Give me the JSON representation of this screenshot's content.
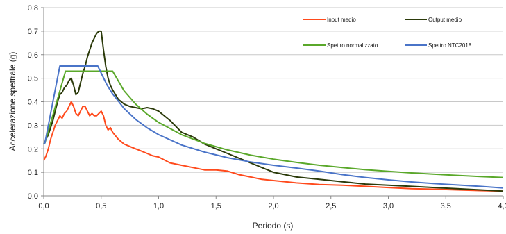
{
  "chart_data": {
    "type": "line",
    "xlabel": "Periodo (s)",
    "ylabel": "Accelerazione spettrale (g)",
    "xlim": [
      0,
      4
    ],
    "ylim": [
      0,
      0.8
    ],
    "x_ticks": [
      "0,0",
      "0,5",
      "1,0",
      "1,5",
      "2,0",
      "2,5",
      "3,0",
      "3,5",
      "4,0"
    ],
    "y_ticks": [
      "0,0",
      "0,1",
      "0,2",
      "0,3",
      "0,4",
      "0,5",
      "0,6",
      "0,7",
      "0,8"
    ],
    "grid": "horizontal",
    "legend_position": "top-right",
    "series": [
      {
        "name": "Input medio",
        "color": "#ff4a1c",
        "x": [
          0.0,
          0.02,
          0.04,
          0.06,
          0.08,
          0.1,
          0.12,
          0.14,
          0.16,
          0.18,
          0.2,
          0.22,
          0.24,
          0.26,
          0.28,
          0.3,
          0.32,
          0.34,
          0.36,
          0.38,
          0.4,
          0.42,
          0.44,
          0.46,
          0.48,
          0.5,
          0.52,
          0.54,
          0.56,
          0.58,
          0.6,
          0.65,
          0.7,
          0.75,
          0.8,
          0.85,
          0.9,
          0.95,
          1.0,
          1.1,
          1.2,
          1.3,
          1.4,
          1.5,
          1.6,
          1.7,
          1.8,
          1.9,
          2.0,
          2.2,
          2.4,
          2.6,
          2.8,
          3.0,
          3.2,
          3.4,
          3.6,
          3.8,
          4.0
        ],
        "y": [
          0.15,
          0.17,
          0.2,
          0.24,
          0.27,
          0.3,
          0.32,
          0.34,
          0.33,
          0.35,
          0.36,
          0.38,
          0.4,
          0.38,
          0.35,
          0.34,
          0.36,
          0.38,
          0.38,
          0.36,
          0.34,
          0.35,
          0.34,
          0.34,
          0.35,
          0.36,
          0.34,
          0.3,
          0.28,
          0.29,
          0.27,
          0.24,
          0.22,
          0.21,
          0.2,
          0.19,
          0.18,
          0.17,
          0.165,
          0.14,
          0.13,
          0.12,
          0.11,
          0.11,
          0.105,
          0.09,
          0.08,
          0.07,
          0.065,
          0.055,
          0.048,
          0.045,
          0.04,
          0.035,
          0.03,
          0.028,
          0.025,
          0.022,
          0.02
        ]
      },
      {
        "name": "Output medio",
        "color": "#2b3a0a",
        "x": [
          0.0,
          0.02,
          0.04,
          0.06,
          0.08,
          0.1,
          0.12,
          0.14,
          0.16,
          0.18,
          0.2,
          0.22,
          0.24,
          0.26,
          0.28,
          0.3,
          0.32,
          0.34,
          0.36,
          0.38,
          0.4,
          0.42,
          0.44,
          0.46,
          0.48,
          0.5,
          0.52,
          0.54,
          0.56,
          0.58,
          0.6,
          0.65,
          0.7,
          0.75,
          0.8,
          0.85,
          0.9,
          0.95,
          1.0,
          1.1,
          1.2,
          1.3,
          1.4,
          1.5,
          1.6,
          1.7,
          1.8,
          1.9,
          2.0,
          2.2,
          2.4,
          2.6,
          2.8,
          3.0,
          3.2,
          3.4,
          3.6,
          3.8,
          4.0
        ],
        "y": [
          0.22,
          0.24,
          0.26,
          0.29,
          0.32,
          0.36,
          0.4,
          0.43,
          0.44,
          0.46,
          0.47,
          0.49,
          0.5,
          0.47,
          0.43,
          0.44,
          0.48,
          0.52,
          0.55,
          0.59,
          0.62,
          0.65,
          0.67,
          0.69,
          0.7,
          0.7,
          0.62,
          0.55,
          0.5,
          0.47,
          0.45,
          0.41,
          0.39,
          0.38,
          0.375,
          0.37,
          0.375,
          0.37,
          0.36,
          0.32,
          0.27,
          0.25,
          0.22,
          0.2,
          0.18,
          0.16,
          0.14,
          0.12,
          0.1,
          0.08,
          0.07,
          0.06,
          0.05,
          0.045,
          0.04,
          0.035,
          0.03,
          0.025,
          0.02
        ]
      },
      {
        "name": "Spettro normalizzato",
        "color": "#5aa82a",
        "x": [
          0.0,
          0.01,
          0.19,
          0.2,
          0.58,
          0.6,
          0.7,
          0.8,
          0.9,
          1.0,
          1.2,
          1.4,
          1.6,
          1.8,
          2.0,
          2.2,
          2.4,
          2.6,
          2.8,
          3.0,
          3.2,
          3.4,
          3.6,
          3.8,
          4.0
        ],
        "y": [
          0.22,
          0.225,
          0.53,
          0.53,
          0.53,
          0.53,
          0.446,
          0.39,
          0.347,
          0.312,
          0.26,
          0.223,
          0.195,
          0.173,
          0.156,
          0.142,
          0.13,
          0.12,
          0.111,
          0.104,
          0.0975,
          0.0918,
          0.0867,
          0.0821,
          0.078
        ]
      },
      {
        "name": "Spettro NTC2018",
        "color": "#4a74c8",
        "x": [
          0.0,
          0.01,
          0.14,
          0.15,
          0.46,
          0.47,
          0.55,
          0.6,
          0.7,
          0.8,
          0.9,
          1.0,
          1.2,
          1.4,
          1.6,
          1.8,
          2.0,
          2.2,
          2.4,
          2.6,
          2.8,
          3.0,
          3.2,
          3.4,
          3.6,
          3.8,
          4.0
        ],
        "y": [
          0.22,
          0.225,
          0.552,
          0.552,
          0.552,
          0.552,
          0.472,
          0.433,
          0.371,
          0.325,
          0.289,
          0.26,
          0.216,
          0.186,
          0.162,
          0.144,
          0.13,
          0.118,
          0.105,
          0.09,
          0.078,
          0.068,
          0.059,
          0.052,
          0.046,
          0.04,
          0.033
        ]
      }
    ]
  }
}
